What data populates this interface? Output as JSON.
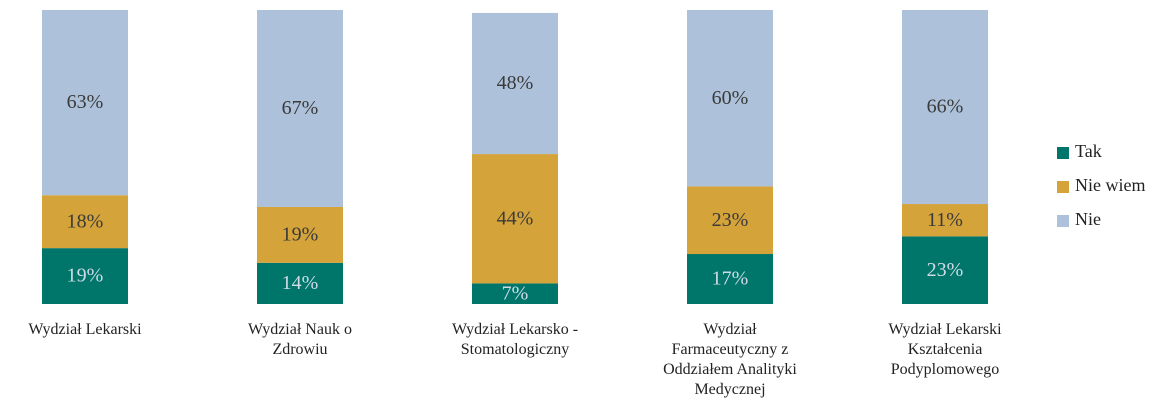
{
  "chart_data": {
    "type": "stacked_bar",
    "categories": [
      "Wydział Lekarski",
      "Wydział Nauk o Zdrowiu",
      "Wydział Lekarsko - Stomatologiczny",
      "Wydział Farmaceutyczny z Oddziałem Analityki Medycznej",
      "Wydział Lekarski Kształcenia Podyplomowego"
    ],
    "series": [
      {
        "name": "Tak",
        "color": "#00756a",
        "values": [
          19,
          14,
          7,
          17,
          23
        ],
        "value_labels": [
          "19%",
          "14%",
          "7%",
          "17%",
          "23%"
        ]
      },
      {
        "name": "Nie wiem",
        "color": "#d4a33a",
        "values": [
          18,
          19,
          44,
          23,
          11
        ],
        "value_labels": [
          "18%",
          "19%",
          "44%",
          "23%",
          "11%"
        ]
      },
      {
        "name": "Nie",
        "color": "#adc2da",
        "values": [
          63,
          67,
          48,
          60,
          66
        ],
        "value_labels": [
          "63%",
          "67%",
          "48%",
          "60%",
          "66%"
        ]
      }
    ],
    "ylim": [
      0,
      100
    ],
    "legend": "right"
  }
}
